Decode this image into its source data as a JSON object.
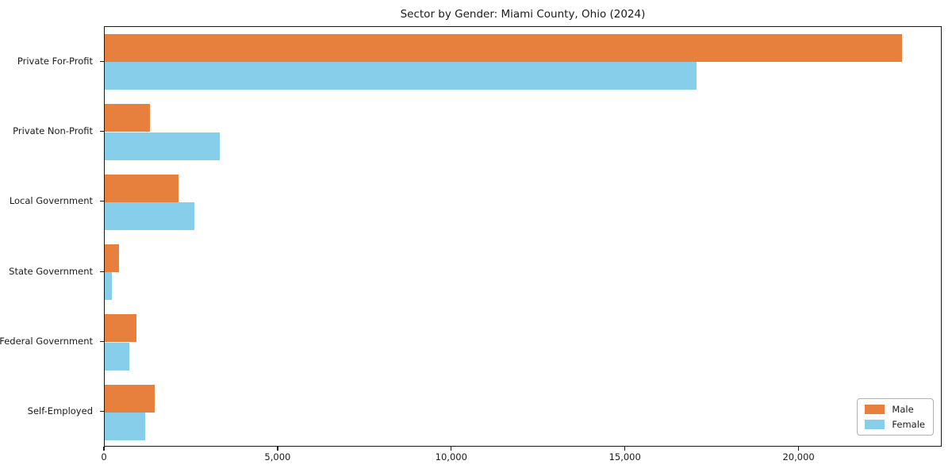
{
  "chart_data": {
    "type": "bar",
    "orientation": "horizontal",
    "title": "Sector by Gender: Miami County, Ohio (2024)",
    "categories": [
      "Private For-Profit",
      "Private Non-Profit",
      "Local Government",
      "State Government",
      "Federal Government",
      "Self-Employed"
    ],
    "series": [
      {
        "name": "Male",
        "color": "#e8803d",
        "values": [
          22950,
          1310,
          2130,
          400,
          910,
          1430
        ]
      },
      {
        "name": "Female",
        "color": "#87ceeb",
        "values": [
          17040,
          3310,
          2590,
          210,
          710,
          1160
        ]
      }
    ],
    "xlabel": "",
    "ylabel": "",
    "xlim": [
      0,
      24120
    ],
    "xticks": [
      0,
      5000,
      10000,
      15000,
      20000
    ],
    "xtick_labels": [
      "0",
      "5,000",
      "10,000",
      "15,000",
      "20,000"
    ],
    "legend": {
      "entries": [
        "Male",
        "Female"
      ],
      "position": "lower right"
    },
    "grid": false,
    "bar_height_ratio": 0.4
  },
  "colors": {
    "background": "#ffffff",
    "spine": "#1a1a1a",
    "text": "#1a1a1a",
    "legend_border": "#b0b0b0",
    "male": "#e8803d",
    "female": "#87ceeb"
  }
}
